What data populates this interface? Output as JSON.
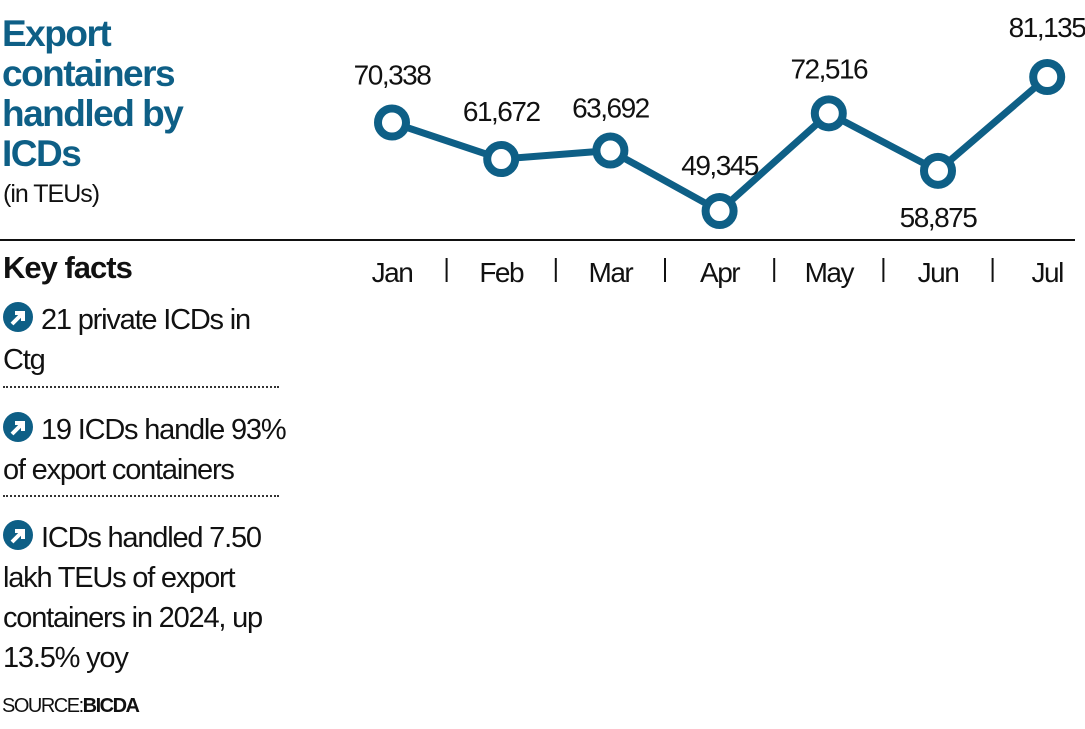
{
  "title": "Export containers handled by ICDs",
  "subtitle": "(in TEUs)",
  "key_facts_heading": "Key facts",
  "facts": [
    {
      "icon": "arrow-circle-icon",
      "text": "21 private ICDs in Ctg"
    },
    {
      "icon": "arrow-circle-icon",
      "text": "19 ICDs handle 93% of export containers"
    },
    {
      "icon": "arrow-circle-icon",
      "text": "ICDs handled 7.50 lakh TEUs of export containers in 2024, up 13.5% yoy"
    }
  ],
  "source_label": "SOURCE:",
  "source_name": "BICDA",
  "colors": {
    "accent": "#0e5f86",
    "text": "#111111"
  },
  "chart_data": {
    "type": "line",
    "title": "Export containers handled by ICDs",
    "ylabel": "TEUs",
    "categories": [
      "Jan",
      "Feb",
      "Mar",
      "Apr",
      "May",
      "Jun",
      "Jul"
    ],
    "series": [
      {
        "name": "Export containers",
        "values": [
          70338,
          61672,
          63692,
          49345,
          72516,
          58875,
          81135
        ]
      }
    ],
    "data_labels": [
      "70,338",
      "61,672",
      "63,692",
      "49,345",
      "72,516",
      "58,875",
      "81,135"
    ],
    "ylim": [
      49345,
      81135
    ],
    "grid": false
  }
}
